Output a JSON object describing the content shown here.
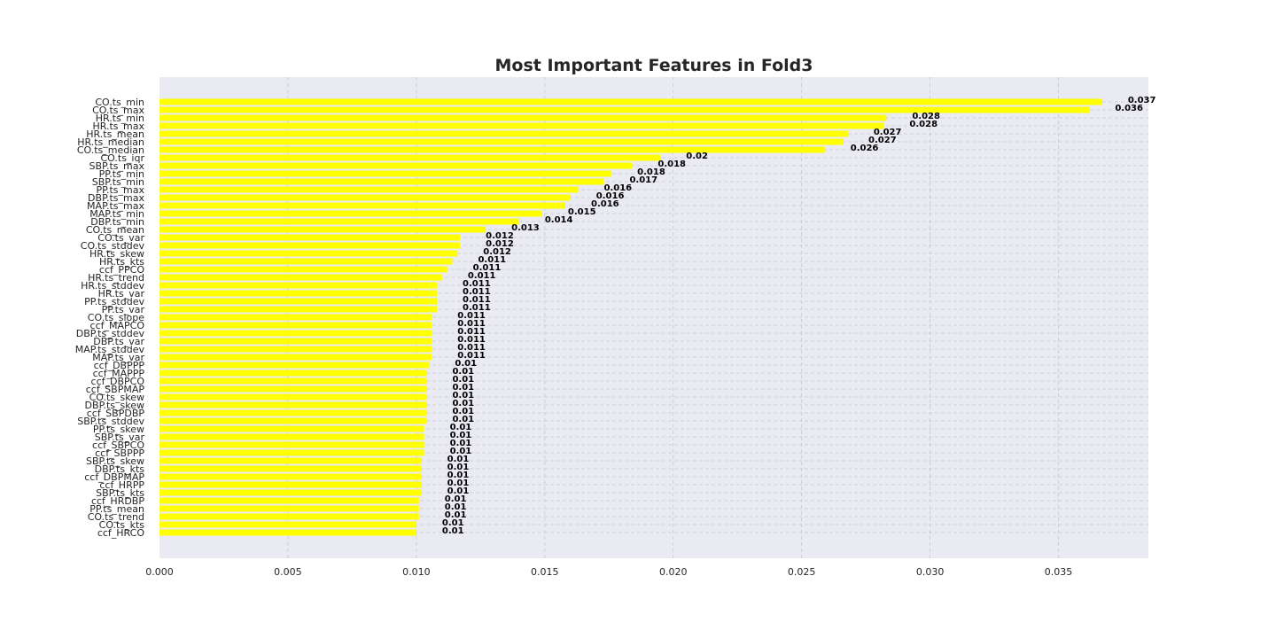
{
  "chart_data": {
    "type": "bar",
    "orientation": "horizontal",
    "title": "Most Important Features in Fold3",
    "xlabel": "",
    "ylabel": "",
    "xlim": [
      0,
      0.0385
    ],
    "xticks": [
      "0.000",
      "0.005",
      "0.010",
      "0.015",
      "0.020",
      "0.025",
      "0.030",
      "0.035"
    ],
    "grid": true,
    "colors": {
      "bar": "#ffff00",
      "background": "#eaeaf2",
      "grid": "#c8c8d2"
    },
    "categories": [
      "CO.ts_min",
      "CO.ts_max",
      "HR.ts_min",
      "HR.ts_max",
      "HR.ts_mean",
      "HR.ts_median",
      "CO.ts_median",
      "CO.ts_iqr",
      "SBP.ts_max",
      "PP.ts_min",
      "SBP.ts_min",
      "PP.ts_max",
      "DBP.ts_max",
      "MAP.ts_max",
      "MAP.ts_min",
      "DBP.ts_min",
      "CO.ts_mean",
      "CO.ts_var",
      "CO.ts_stddev",
      "HR.ts_skew",
      "HR.ts_kts",
      "ccf_PPCO",
      "HR.ts_trend",
      "HR.ts_stddev",
      "HR.ts_var",
      "PP.ts_stddev",
      "PP.ts_var",
      "CO.ts_slope",
      "ccf_MAPCO",
      "DBP.ts_stddev",
      "DBP.ts_var",
      "MAP.ts_stddev",
      "MAP.ts_var",
      "ccf_DBPPP",
      "ccf_MAPPP",
      "ccf_DBPCO",
      "ccf_SBPMAP",
      "CO.ts_skew",
      "DBP.ts_skew",
      "ccf_SBPDBP",
      "SBP.ts_stddev",
      "PP.ts_skew",
      "SBP.ts_var",
      "ccf_SBPCO",
      "ccf_SBPPP",
      "SBP.ts_skew",
      "DBP.ts_kts",
      "ccf_DBPMAP",
      "ccf_HRPP",
      "SBP.ts_kts",
      "ccf_HRDBP",
      "PP.ts_mean",
      "CO.ts_trend",
      "CO.ts_kts",
      "ccf_HRCO"
    ],
    "values": [
      0.0367,
      0.0362,
      0.0283,
      0.0282,
      0.0268,
      0.0266,
      0.0259,
      0.0195,
      0.0184,
      0.0176,
      0.0173,
      0.0163,
      0.016,
      0.0158,
      0.0149,
      0.014,
      0.0127,
      0.0117,
      0.0117,
      0.0116,
      0.0114,
      0.0112,
      0.011,
      0.0108,
      0.0108,
      0.0108,
      0.0108,
      0.0106,
      0.0106,
      0.0106,
      0.0106,
      0.0106,
      0.0106,
      0.0105,
      0.0104,
      0.0104,
      0.0104,
      0.0104,
      0.0104,
      0.0104,
      0.0104,
      0.0103,
      0.0103,
      0.0103,
      0.0103,
      0.0102,
      0.0102,
      0.0102,
      0.0102,
      0.0102,
      0.0101,
      0.0101,
      0.0101,
      0.01,
      0.01
    ],
    "value_labels": [
      "0.037",
      "0.036",
      "0.028",
      "0.028",
      "0.027",
      "0.027",
      "0.026",
      "0.02",
      "0.018",
      "0.018",
      "0.017",
      "0.016",
      "0.016",
      "0.016",
      "0.015",
      "0.014",
      "0.013",
      "0.012",
      "0.012",
      "0.012",
      "0.011",
      "0.011",
      "0.011",
      "0.011",
      "0.011",
      "0.011",
      "0.011",
      "0.011",
      "0.011",
      "0.011",
      "0.011",
      "0.011",
      "0.011",
      "0.01",
      "0.01",
      "0.01",
      "0.01",
      "0.01",
      "0.01",
      "0.01",
      "0.01",
      "0.01",
      "0.01",
      "0.01",
      "0.01",
      "0.01",
      "0.01",
      "0.01",
      "0.01",
      "0.01",
      "0.01",
      "0.01",
      "0.01",
      "0.01",
      "0.01"
    ]
  }
}
